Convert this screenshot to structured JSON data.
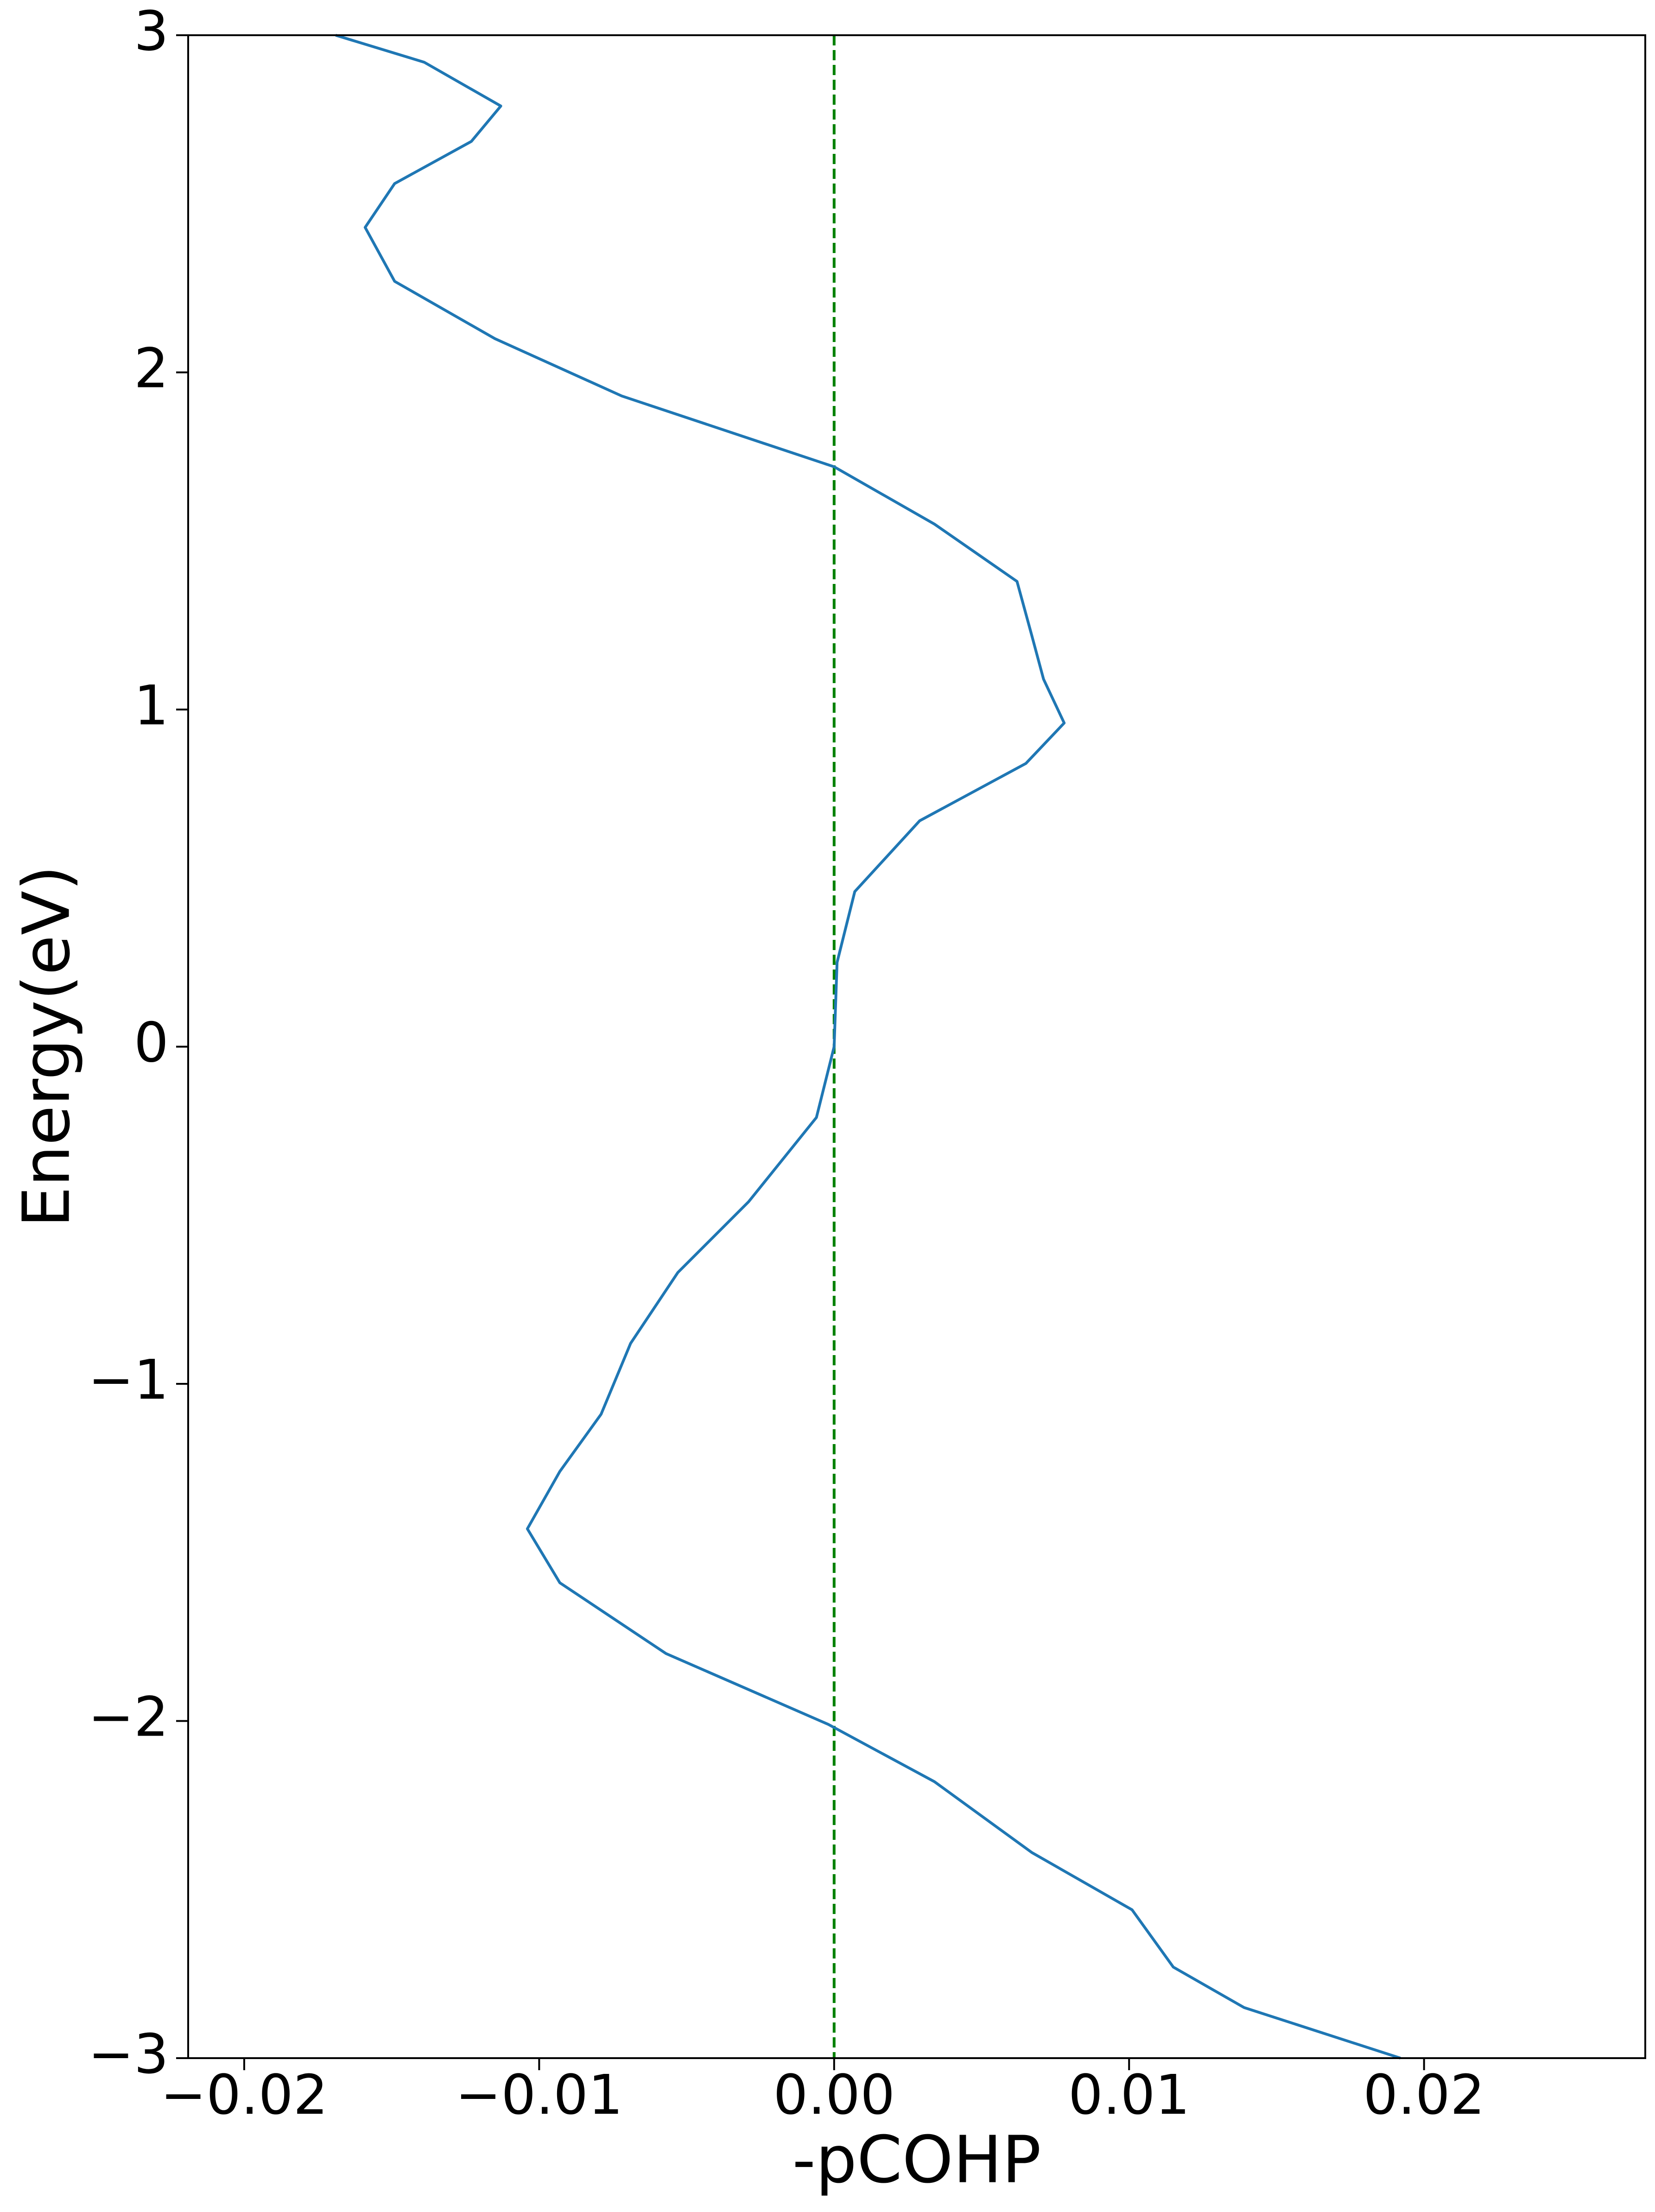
{
  "chart_data": {
    "type": "line",
    "xlabel": "-pCOHP",
    "ylabel": "Energy(eV)",
    "orientation": "horizontal",
    "y": [
      3,
      2.92,
      2.79,
      2.685,
      2.56,
      2.43,
      2.27,
      2.1,
      1.93,
      1.72,
      1.55,
      1.38,
      1.22,
      1.09,
      0.96,
      0.84,
      0.67,
      0.46,
      0.25,
      0,
      -0.21,
      -0.46,
      -0.67,
      -0.88,
      -1.09,
      -1.26,
      -1.43,
      -1.59,
      -1.8,
      -2.01,
      -2.18,
      -2.39,
      -2.56,
      -2.73,
      -2.85,
      -3
    ],
    "series": [
      {
        "color": "#1f77b4",
        "values": [
          -0.0169,
          -0.0139,
          -0.0113,
          -0.0123,
          -0.0149,
          -0.0159,
          -0.0149,
          -0.0115,
          -0.0072,
          0,
          0.0034,
          0.0062,
          0.0067,
          0.0071,
          0.0078,
          0.0065,
          0.0029,
          0.0007,
          0.0001,
          0,
          -0.0006,
          -0.0029,
          -0.0053,
          -0.0069,
          -0.0079,
          -0.0093,
          -0.0104,
          -0.0093,
          -0.0057,
          -0.0002,
          0.0034,
          0.0067,
          0.0101,
          0.0115,
          0.0139,
          0.0192
        ]
      }
    ],
    "vline": {
      "value": 0,
      "color": "#008000"
    },
    "xlim": [
      -0.0219,
      0.0275
    ],
    "ylim": [
      -3,
      3
    ],
    "xticks": [
      {
        "value": -0.02,
        "label": "−0.02"
      },
      {
        "value": -0.01,
        "label": "−0.01"
      },
      {
        "value": 0,
        "label": "0.00"
      },
      0.01,
      0.02
    ],
    "yticks": [
      {
        "value": -3,
        "label": "−3"
      },
      {
        "value": -2,
        "label": "−2"
      },
      {
        "value": -1,
        "label": "−1"
      },
      0,
      1,
      2,
      3
    ]
  }
}
